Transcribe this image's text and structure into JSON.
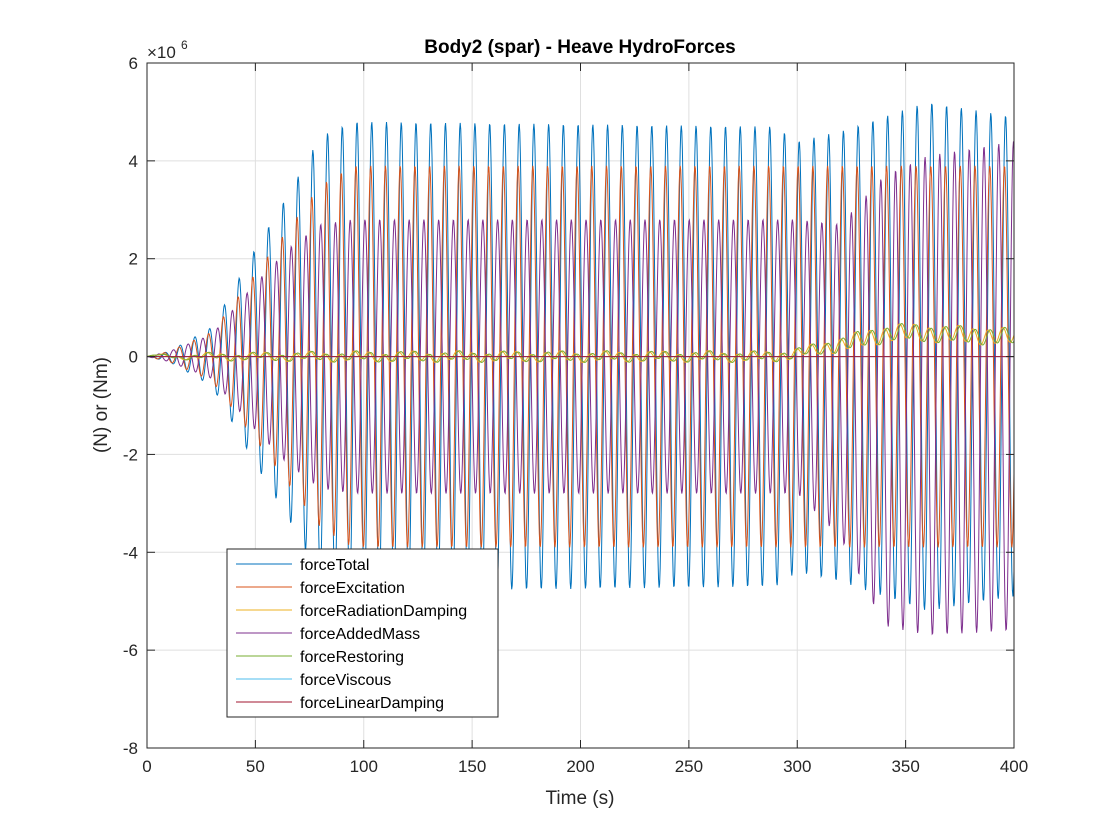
{
  "chart_data": {
    "type": "line",
    "title": "Body2 (spar) - Heave HydroForces",
    "xlabel": "Time (s)",
    "ylabel": "(N) or (Nm)",
    "y_exponent_label": "×10",
    "y_exponent_power": "6",
    "xlim": [
      0,
      400
    ],
    "ylim": [
      -8,
      6
    ],
    "xticks": [
      0,
      50,
      100,
      150,
      200,
      250,
      300,
      350,
      400
    ],
    "yticks": [
      -8,
      -6,
      -4,
      -2,
      0,
      2,
      4,
      6
    ],
    "xtick_labels": [
      "0",
      "50",
      "100",
      "150",
      "200",
      "250",
      "300",
      "350",
      "400"
    ],
    "ytick_labels": [
      "-8",
      "-6",
      "-4",
      "-2",
      "0",
      "2",
      "4",
      "6"
    ],
    "grid": true,
    "legend_position": "lower-left",
    "oscillation_period_s": 6.8,
    "series": [
      {
        "name": "forceTotal",
        "color": "#0072BD",
        "amplitude_envelope": [
          [
            0,
            0
          ],
          [
            10,
            0.1
          ],
          [
            30,
            0.6
          ],
          [
            50,
            2.2
          ],
          [
            65,
            3.3
          ],
          [
            80,
            4.5
          ],
          [
            95,
            4.8
          ],
          [
            290,
            4.7
          ],
          [
            300,
            4.4
          ],
          [
            320,
            4.6
          ],
          [
            360,
            5.2
          ],
          [
            400,
            4.9
          ]
        ],
        "offset_envelope": [
          [
            0,
            0
          ],
          [
            400,
            0
          ]
        ]
      },
      {
        "name": "forceExcitation",
        "color": "#D95319",
        "amplitude_envelope": [
          [
            0,
            0
          ],
          [
            10,
            0.1
          ],
          [
            30,
            0.5
          ],
          [
            50,
            1.7
          ],
          [
            65,
            2.6
          ],
          [
            80,
            3.5
          ],
          [
            95,
            3.9
          ],
          [
            400,
            3.9
          ]
        ],
        "offset_envelope": [
          [
            0,
            0
          ],
          [
            400,
            0
          ]
        ]
      },
      {
        "name": "forceRadiationDamping",
        "color": "#EDB120",
        "amplitude_envelope": [
          [
            0,
            0
          ],
          [
            30,
            0.05
          ],
          [
            100,
            0.08
          ],
          [
            300,
            0.08
          ],
          [
            330,
            0.15
          ],
          [
            400,
            0.15
          ]
        ],
        "offset_envelope": [
          [
            0,
            0
          ],
          [
            290,
            0
          ],
          [
            310,
            0.15
          ],
          [
            330,
            0.35
          ],
          [
            345,
            0.5
          ],
          [
            400,
            0.4
          ]
        ]
      },
      {
        "name": "forceAddedMass",
        "color": "#7E2F8E",
        "amplitude_envelope": [
          [
            0,
            0
          ],
          [
            10,
            0.1
          ],
          [
            30,
            0.45
          ],
          [
            50,
            1.5
          ],
          [
            65,
            2.2
          ],
          [
            80,
            2.7
          ],
          [
            95,
            2.8
          ],
          [
            300,
            2.8
          ],
          [
            320,
            3.2
          ],
          [
            340,
            4.6
          ],
          [
            360,
            4.9
          ],
          [
            400,
            5.0
          ]
        ],
        "offset_envelope": [
          [
            0,
            0
          ],
          [
            300,
            0
          ],
          [
            320,
            -0.5
          ],
          [
            340,
            -0.9
          ],
          [
            400,
            -0.6
          ]
        ]
      },
      {
        "name": "forceRestoring",
        "color": "#77AC30",
        "amplitude_envelope": [
          [
            0,
            0
          ],
          [
            30,
            0.05
          ],
          [
            100,
            0.08
          ],
          [
            300,
            0.08
          ],
          [
            330,
            0.15
          ],
          [
            400,
            0.15
          ]
        ],
        "offset_envelope": [
          [
            0,
            0
          ],
          [
            290,
            0
          ],
          [
            310,
            0.15
          ],
          [
            330,
            0.35
          ],
          [
            345,
            0.5
          ],
          [
            400,
            0.4
          ]
        ]
      },
      {
        "name": "forceViscous",
        "color": "#4DBEEE",
        "amplitude_envelope": [
          [
            0,
            0
          ],
          [
            400,
            0
          ]
        ],
        "offset_envelope": [
          [
            0,
            0
          ],
          [
            400,
            0
          ]
        ]
      },
      {
        "name": "forceLinearDamping",
        "color": "#A2142F",
        "amplitude_envelope": [
          [
            0,
            0
          ],
          [
            400,
            0
          ]
        ],
        "offset_envelope": [
          [
            0,
            0
          ],
          [
            400,
            0
          ]
        ]
      }
    ]
  }
}
